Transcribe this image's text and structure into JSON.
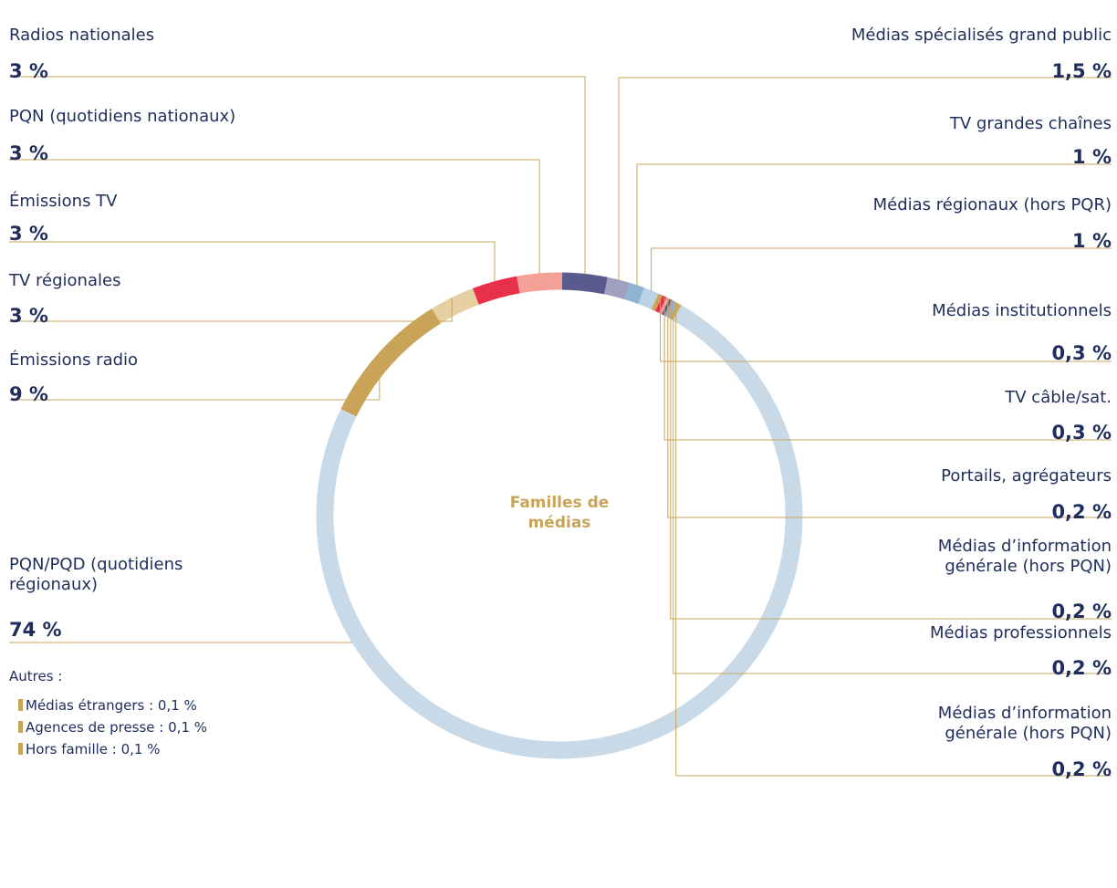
{
  "chart_data": {
    "type": "donut",
    "center_label": "Familles de médias",
    "categories": [
      "Émissions radio",
      "TV régionales",
      "Émissions TV",
      "PQN (quotidiens nationaux)",
      "Radios nationales",
      "Médias spécialisés grand public",
      "TV grandes chaînes",
      "Médias régionaux (hors PQR)",
      "Médias institutionnels",
      "TV câble/sat.",
      "Portails, agrégateurs",
      "Médias d’information générale (hors PQN)",
      "Médias professionnels",
      "Médias d’information générale (hors PQN)",
      "PQN/PQD (quotidiens régionaux)"
    ],
    "values": [
      9,
      3,
      3,
      3,
      3,
      1.5,
      1,
      1,
      0.3,
      0.3,
      0.2,
      0.2,
      0.2,
      0.2,
      74
    ],
    "value_labels": [
      "9 %",
      "3 %",
      "3 %",
      "3 %",
      "3 %",
      "1,5 %",
      "1 %",
      "1 %",
      "0,3 %",
      "0,3 %",
      "0,2 %",
      "0,2 %",
      "0,2 %",
      "0,2 %",
      "74 %"
    ],
    "colors": [
      "#c9a458",
      "#e6cfa0",
      "#e8304a",
      "#f4a096",
      "#5a5a8e",
      "#a19fc0",
      "#8fb4d2",
      "#bcd3e6",
      "#c9a458",
      "#e8304a",
      "#f4a096",
      "#5a5a8e",
      "#a19fc0",
      "#8fb4d2",
      "#c8dae8"
    ],
    "others_title": "Autres :",
    "others": [
      {
        "label": "Médias étrangers : 0,1 %",
        "value": 0.1,
        "color": "#c9a458"
      },
      {
        "label": "Agences de presse : 0,1 %",
        "value": 0.1,
        "color": "#c9a458"
      },
      {
        "label": "Hors famille : 0,1 %",
        "value": 0.1,
        "color": "#c9a458"
      }
    ]
  }
}
